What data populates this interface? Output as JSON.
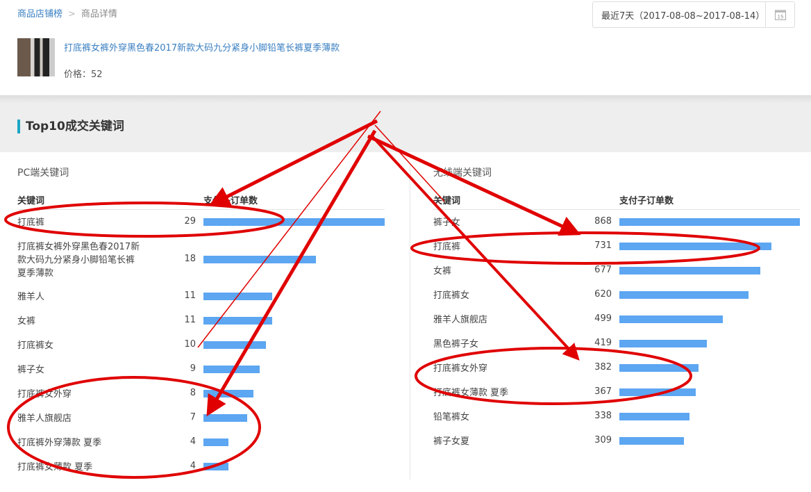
{
  "breadcrumb": {
    "parent": "商品店铺榜",
    "separator": ">",
    "current": "商品详情"
  },
  "date_range": {
    "label": "最近7天（2017-08-08~2017-08-14）",
    "calendar_icon": "calendar-icon",
    "calendar_day": "15"
  },
  "product": {
    "title": "打底裤女裤外穿黑色春2017新款大码九分紧身小脚铅笔长裤夏季薄款",
    "price": "价格：52"
  },
  "section": {
    "title": "Top10成交关键词",
    "accent": "#1ba6c4"
  },
  "pc": {
    "title": "PC端关键词",
    "col_keyword": "关键词",
    "col_orders": "支付子订单数",
    "rows": [
      {
        "keyword": "打底裤",
        "orders": 29
      },
      {
        "keyword": "打底裤女裤外穿黑色春2017新款大码九分紧身小脚铅笔长裤夏季薄款",
        "orders": 18
      },
      {
        "keyword": "雅羊人",
        "orders": 11
      },
      {
        "keyword": "女裤",
        "orders": 11
      },
      {
        "keyword": "打底裤女",
        "orders": 10
      },
      {
        "keyword": "裤子女",
        "orders": 9
      },
      {
        "keyword": "打底裤女外穿",
        "orders": 8
      },
      {
        "keyword": "雅羊人旗舰店",
        "orders": 7
      },
      {
        "keyword": "打底裤外穿薄款 夏季",
        "orders": 4
      },
      {
        "keyword": "打底裤女薄款 夏季",
        "orders": 4
      }
    ]
  },
  "mobile": {
    "title": "无线端关键词",
    "col_keyword": "关键词",
    "col_orders": "支付子订单数",
    "rows": [
      {
        "keyword": "裤子女",
        "orders": 868
      },
      {
        "keyword": "打底裤",
        "orders": 731
      },
      {
        "keyword": "女裤",
        "orders": 677
      },
      {
        "keyword": "打底裤女",
        "orders": 620
      },
      {
        "keyword": "雅羊人旗舰店",
        "orders": 499
      },
      {
        "keyword": "黑色裤子女",
        "orders": 419
      },
      {
        "keyword": "打底裤女外穿",
        "orders": 382
      },
      {
        "keyword": "打底裤女薄款 夏季",
        "orders": 367
      },
      {
        "keyword": "铅笔裤女",
        "orders": 338
      },
      {
        "keyword": "裤子女夏",
        "orders": 309
      }
    ]
  },
  "colors": {
    "bar": "#5ca6f2",
    "link": "#3a7fc1",
    "annotation": "#e00000"
  }
}
